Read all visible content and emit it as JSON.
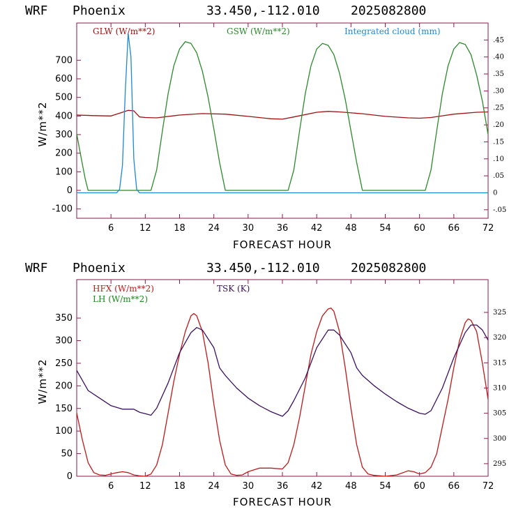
{
  "charts": [
    {
      "header": {
        "model": "WRF",
        "station": "Phoenix",
        "coords": "33.450,-112.010",
        "run": "2025082800"
      },
      "ylabel": "W/m**2",
      "xlabel": "FORECAST HOUR",
      "legend": [
        "GLW (W/m**2)",
        "GSW (W/m**2)",
        "Integrated cloud (mm)"
      ],
      "x_ticks": [
        "6",
        "12",
        "18",
        "24",
        "30",
        "36",
        "42",
        "48",
        "54",
        "60",
        "66",
        "72"
      ],
      "left_ticks": [
        "-100",
        "0",
        "100",
        "200",
        "300",
        "400",
        "500",
        "600",
        "700"
      ],
      "right_ticks": [
        "-.05",
        "0",
        ".05",
        ".10",
        ".15",
        ".20",
        ".25",
        ".30",
        ".35",
        ".40",
        ".45"
      ]
    },
    {
      "header": {
        "model": "WRF",
        "station": "Phoenix",
        "coords": "33.450,-112.010",
        "run": "2025082800"
      },
      "ylabel": "W/m**2",
      "xlabel": "FORECAST HOUR",
      "legend": [
        "HFX (W/m**2)",
        "LH (W/m**2)",
        "TSK (K)"
      ],
      "x_ticks": [
        "6",
        "12",
        "18",
        "24",
        "30",
        "36",
        "42",
        "48",
        "54",
        "60",
        "66",
        "72"
      ],
      "left_ticks": [
        "0",
        "50",
        "100",
        "150",
        "200",
        "250",
        "300",
        "350"
      ],
      "right_ticks": [
        "295",
        "300",
        "305",
        "310",
        "315",
        "320",
        "325"
      ]
    }
  ],
  "colors": {
    "glw": "#a01010",
    "gsw": "#2a8a2a",
    "cloud": "#1e88d8",
    "hfx": "#c01818",
    "lh": "#1a8a1a",
    "tsk": "#3a1060",
    "frame": "#8b1a4a"
  },
  "chart_data": [
    {
      "type": "line",
      "title": "WRF Phoenix 33.450,-112.010 2025082800",
      "xlabel": "FORECAST HOUR",
      "ylabel": "W/m**2",
      "xlim": [
        0,
        72
      ],
      "ylim": [
        -150,
        900
      ],
      "y2lim": [
        -0.075,
        0.5
      ],
      "series": [
        {
          "name": "GLW (W/m**2)",
          "axis": "left",
          "x": [
            0,
            3,
            6,
            8,
            9,
            10,
            11,
            12,
            14,
            18,
            22,
            26,
            30,
            34,
            36,
            38,
            42,
            44,
            46,
            50,
            54,
            58,
            60,
            62,
            66,
            70,
            72
          ],
          "values": [
            405,
            402,
            400,
            420,
            430,
            428,
            395,
            392,
            390,
            405,
            413,
            410,
            398,
            385,
            383,
            395,
            420,
            425,
            422,
            412,
            398,
            390,
            388,
            392,
            410,
            420,
            422
          ]
        },
        {
          "name": "GSW (W/m**2)",
          "axis": "left",
          "x": [
            0,
            0.5,
            1,
            1.5,
            2,
            13,
            14,
            15,
            16,
            17,
            18,
            19,
            20,
            21,
            22,
            23,
            24,
            25,
            26,
            37,
            38,
            39,
            40,
            41,
            42,
            43,
            44,
            45,
            46,
            47,
            48,
            49,
            50,
            61,
            62,
            63,
            64,
            65,
            66,
            67,
            68,
            69,
            70,
            71,
            72
          ],
          "values": [
            305,
            220,
            140,
            60,
            0,
            0,
            110,
            320,
            520,
            670,
            760,
            800,
            790,
            740,
            640,
            500,
            330,
            150,
            0,
            0,
            110,
            320,
            520,
            670,
            760,
            790,
            780,
            730,
            630,
            490,
            320,
            150,
            0,
            0,
            110,
            320,
            520,
            670,
            760,
            795,
            785,
            730,
            620,
            480,
            300
          ]
        },
        {
          "name": "Integrated cloud (mm)",
          "axis": "right",
          "x": [
            0,
            7,
            7.5,
            8,
            8.5,
            9,
            9.5,
            10,
            10.5,
            11,
            72
          ],
          "values": [
            0,
            0,
            0.01,
            0.08,
            0.3,
            0.47,
            0.4,
            0.1,
            0.01,
            0,
            0
          ]
        }
      ]
    },
    {
      "type": "line",
      "title": "WRF Phoenix 33.450,-112.010 2025082800",
      "xlabel": "FORECAST HOUR",
      "ylabel": "W/m**2",
      "xlim": [
        0,
        72
      ],
      "ylim": [
        0,
        435
      ],
      "y2lim": [
        292.5,
        331.5
      ],
      "series": [
        {
          "name": "HFX (W/m**2)",
          "axis": "left",
          "x": [
            0,
            1,
            2,
            3,
            4,
            5,
            6,
            7,
            8,
            9,
            10,
            11,
            12,
            13,
            14,
            15,
            16,
            17,
            18,
            19,
            20,
            20.5,
            21,
            22,
            23,
            24,
            25,
            26,
            27,
            28,
            29,
            30,
            32,
            34,
            36,
            37,
            38,
            39,
            40,
            41,
            42,
            43,
            44,
            44.5,
            45,
            46,
            47,
            48,
            49,
            50,
            51,
            52,
            54,
            56,
            58,
            59,
            60,
            61,
            62,
            63,
            64,
            65,
            66,
            67,
            68,
            68.5,
            69,
            70,
            71,
            72
          ],
          "values": [
            140,
            80,
            30,
            8,
            3,
            2,
            5,
            8,
            10,
            8,
            3,
            1,
            0,
            5,
            25,
            70,
            140,
            210,
            270,
            320,
            355,
            360,
            355,
            320,
            250,
            160,
            80,
            25,
            5,
            2,
            3,
            10,
            18,
            18,
            16,
            30,
            70,
            130,
            200,
            270,
            320,
            355,
            370,
            372,
            365,
            320,
            240,
            150,
            70,
            20,
            5,
            2,
            0,
            3,
            12,
            10,
            5,
            8,
            20,
            50,
            110,
            170,
            240,
            300,
            340,
            348,
            345,
            320,
            250,
            170
          ]
        },
        {
          "name": "TSK (K)",
          "axis": "right",
          "x": [
            0,
            1,
            2,
            4,
            6,
            8,
            10,
            10.5,
            11,
            12,
            13,
            14,
            16,
            18,
            20,
            21,
            22,
            24,
            25,
            26,
            28,
            30,
            32,
            34,
            36,
            37,
            38,
            40,
            42,
            44,
            45,
            46,
            48,
            49,
            50,
            52,
            54,
            56,
            58,
            60,
            61,
            62,
            64,
            66,
            68,
            69,
            70,
            71,
            72
          ],
          "values": [
            313.5,
            311.5,
            309.5,
            308,
            306.5,
            305.8,
            305.8,
            305.5,
            305.2,
            304.9,
            304.6,
            306,
            311,
            317,
            321,
            322,
            321.5,
            318,
            314,
            312.5,
            310,
            308,
            306.5,
            305.3,
            304.4,
            305.5,
            307.5,
            312,
            318,
            321.5,
            321.5,
            320.5,
            317,
            314,
            312.5,
            310.5,
            308.8,
            307.3,
            306,
            305,
            304.8,
            305.5,
            310,
            316,
            321,
            322.5,
            322.5,
            321.5,
            319.5
          ]
        }
      ]
    }
  ]
}
